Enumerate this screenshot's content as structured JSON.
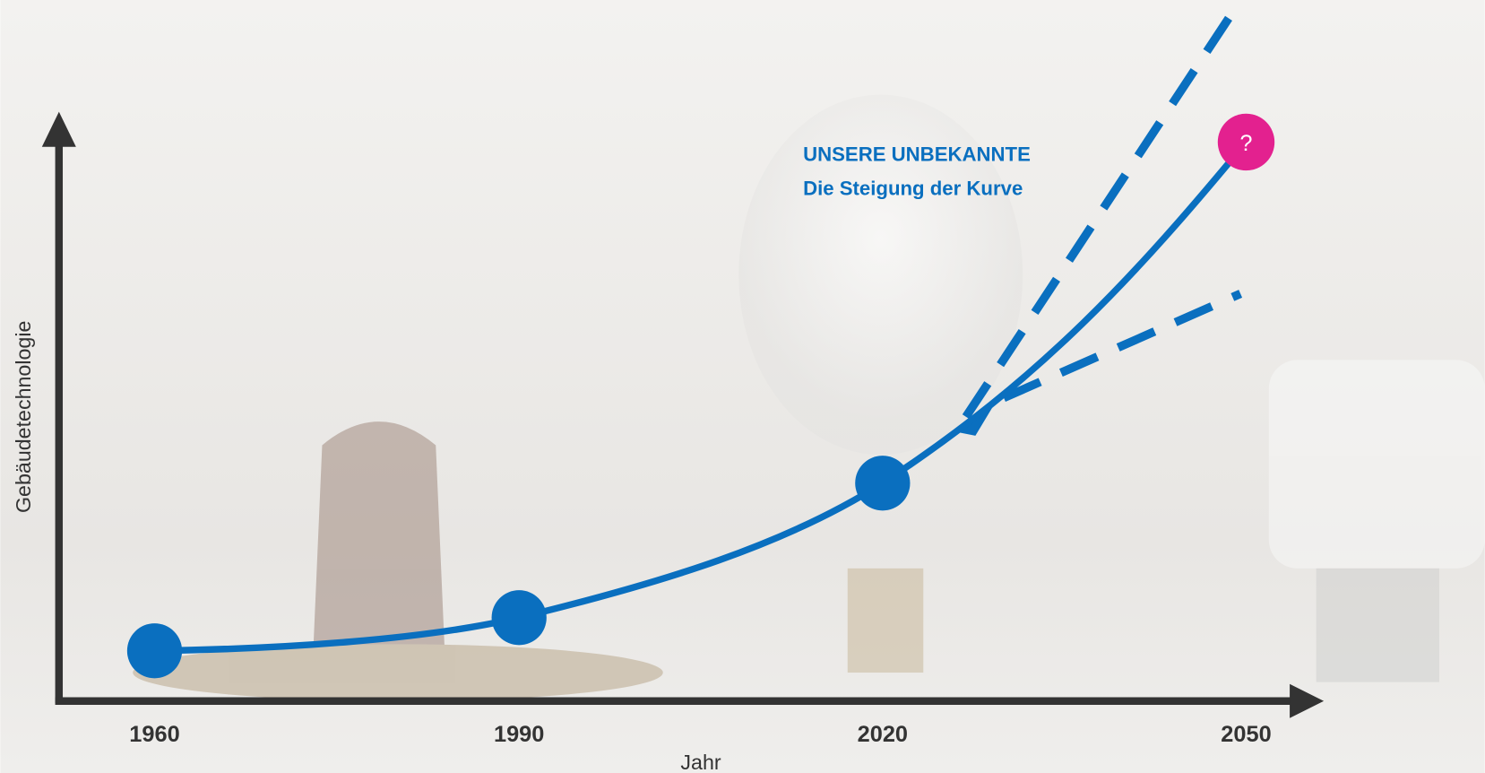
{
  "axes": {
    "x_label": "Jahr",
    "y_label": "Gebäudetechnologie",
    "x_ticks": [
      "1960",
      "1990",
      "2020",
      "2050"
    ]
  },
  "annotation": {
    "title": "UNSERE UNBEKANNTE",
    "subtitle": "Die Steigung der Kurve"
  },
  "marker": {
    "label": "?"
  }
}
